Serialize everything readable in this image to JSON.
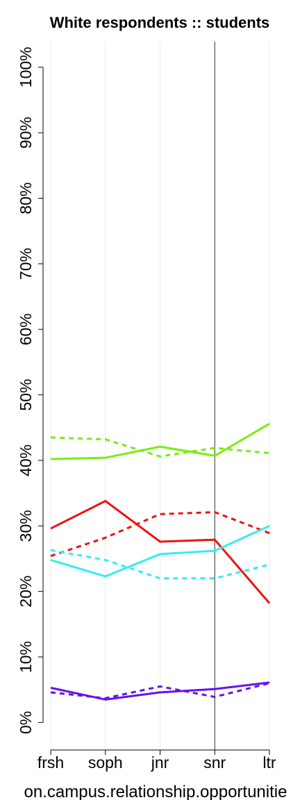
{
  "chart_data": {
    "type": "line",
    "title": "White respondents :: students",
    "x_label": "on.campus.relationship.opportunitie",
    "categories": [
      "frsh",
      "soph",
      "jnr",
      "snr",
      "ltr"
    ],
    "series": [
      {
        "color": "#77ee11",
        "dashed": false,
        "values": [
          40.2,
          40.4,
          42.1,
          40.7,
          45.6
        ]
      },
      {
        "color": "#77ee11",
        "dashed": true,
        "values": [
          43.5,
          43.2,
          40.6,
          41.9,
          41.1
        ]
      },
      {
        "color": "#ee1111",
        "dashed": false,
        "values": [
          29.6,
          33.8,
          27.6,
          27.9,
          18.2
        ]
      },
      {
        "color": "#ee1111",
        "dashed": true,
        "values": [
          25.4,
          28.2,
          31.8,
          32.1,
          28.9
        ]
      },
      {
        "color": "#33eeee",
        "dashed": false,
        "values": [
          24.8,
          22.3,
          25.7,
          26.2,
          30.0
        ]
      },
      {
        "color": "#33eeee",
        "dashed": true,
        "values": [
          26.3,
          24.8,
          22.0,
          22.0,
          24.1
        ]
      },
      {
        "color": "#6611ee",
        "dashed": false,
        "values": [
          5.3,
          3.5,
          4.6,
          5.1,
          6.1
        ]
      },
      {
        "color": "#6611ee",
        "dashed": true,
        "values": [
          4.6,
          3.7,
          5.5,
          3.9,
          6.0
        ]
      }
    ],
    "ylim": [
      -4.2,
      103.9
    ],
    "yticks": [
      {
        "value": 0,
        "label": "0%"
      },
      {
        "value": 10,
        "label": "10%"
      },
      {
        "value": 20,
        "label": "20%"
      },
      {
        "value": 30,
        "label": "30%"
      },
      {
        "value": 40,
        "label": "40%"
      },
      {
        "value": 50,
        "label": "50%"
      },
      {
        "value": 60,
        "label": "60%"
      },
      {
        "value": 70,
        "label": "70%"
      },
      {
        "value": 80,
        "label": "80%"
      },
      {
        "value": 90,
        "label": "90%"
      },
      {
        "value": 100,
        "label": "100%"
      }
    ],
    "grid": "x",
    "reference_line": "snr"
  }
}
